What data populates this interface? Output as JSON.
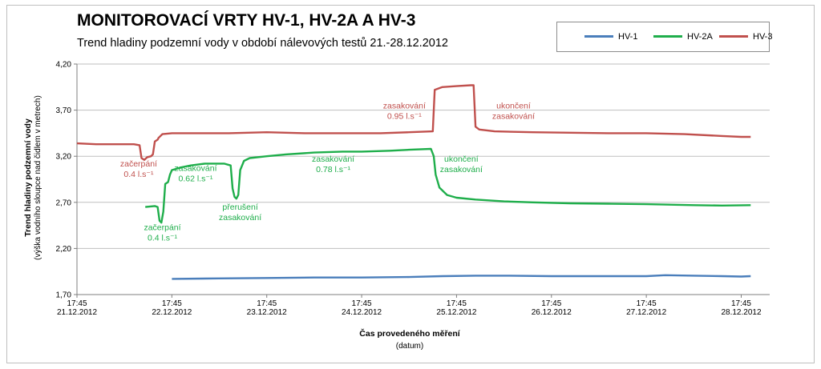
{
  "chart_data": {
    "type": "line",
    "title": "MONITOROVACÍ VRTY HV-1, HV-2A A HV-3",
    "subtitle": "Trend hladiny podzemní vody v období nálevových testů 21.-28.12.2012",
    "ylabel": "Trend hladiny podzemní vody",
    "ylabel_sub": "(výška vodního sloupce nad čidlem v metrech)",
    "xlabel": "Čas provedeného měření",
    "xlabel_sub": "(datum)",
    "ylim": [
      1.7,
      4.2
    ],
    "yticks": [
      "4,20",
      "3,70",
      "3,20",
      "2,70",
      "2,20",
      "1,70"
    ],
    "xlim": [
      0,
      7.3
    ],
    "xticks": [
      {
        "time": "17:45",
        "date": "21.12.2012"
      },
      {
        "time": "17:45",
        "date": "22.12.2012"
      },
      {
        "time": "17:45",
        "date": "23.12.2012"
      },
      {
        "time": "17:45",
        "date": "24.12.2012"
      },
      {
        "time": "17:45",
        "date": "25.12.2012"
      },
      {
        "time": "17:45",
        "date": "26.12.2012"
      },
      {
        "time": "17:45",
        "date": "27.12.2012"
      },
      {
        "time": "17:45",
        "date": "28.12.2012"
      }
    ],
    "grid": true,
    "legend_position": "top-right",
    "series": [
      {
        "name": "HV-1",
        "color": "#4a7ebb",
        "points": [
          [
            1.0,
            1.87
          ],
          [
            1.5,
            1.875
          ],
          [
            2.0,
            1.88
          ],
          [
            2.5,
            1.885
          ],
          [
            3.0,
            1.885
          ],
          [
            3.5,
            1.89
          ],
          [
            3.85,
            1.9
          ],
          [
            4.2,
            1.905
          ],
          [
            4.5,
            1.905
          ],
          [
            5.0,
            1.9
          ],
          [
            5.5,
            1.9
          ],
          [
            6.0,
            1.9
          ],
          [
            6.2,
            1.91
          ],
          [
            6.5,
            1.905
          ],
          [
            6.8,
            1.9
          ],
          [
            7.0,
            1.895
          ],
          [
            7.1,
            1.9
          ]
        ]
      },
      {
        "name": "HV-2A",
        "color": "#1fae4b",
        "points": [
          [
            0.72,
            2.65
          ],
          [
            0.82,
            2.66
          ],
          [
            0.85,
            2.65
          ],
          [
            0.87,
            2.5
          ],
          [
            0.89,
            2.48
          ],
          [
            0.91,
            2.6
          ],
          [
            0.93,
            2.9
          ],
          [
            0.96,
            2.92
          ],
          [
            0.98,
            3.0
          ],
          [
            1.0,
            3.05
          ],
          [
            1.1,
            3.08
          ],
          [
            1.2,
            3.1
          ],
          [
            1.35,
            3.12
          ],
          [
            1.55,
            3.12
          ],
          [
            1.62,
            3.1
          ],
          [
            1.64,
            2.85
          ],
          [
            1.66,
            2.76
          ],
          [
            1.68,
            2.74
          ],
          [
            1.7,
            2.78
          ],
          [
            1.72,
            3.05
          ],
          [
            1.76,
            3.15
          ],
          [
            1.82,
            3.18
          ],
          [
            2.0,
            3.2
          ],
          [
            2.2,
            3.22
          ],
          [
            2.5,
            3.24
          ],
          [
            2.8,
            3.25
          ],
          [
            3.0,
            3.25
          ],
          [
            3.3,
            3.26
          ],
          [
            3.5,
            3.27
          ],
          [
            3.73,
            3.28
          ],
          [
            3.76,
            3.2
          ],
          [
            3.78,
            3.0
          ],
          [
            3.82,
            2.86
          ],
          [
            3.9,
            2.78
          ],
          [
            4.0,
            2.75
          ],
          [
            4.2,
            2.73
          ],
          [
            4.5,
            2.71
          ],
          [
            4.8,
            2.7
          ],
          [
            5.2,
            2.69
          ],
          [
            5.6,
            2.685
          ],
          [
            6.0,
            2.68
          ],
          [
            6.5,
            2.67
          ],
          [
            6.8,
            2.665
          ],
          [
            7.1,
            2.67
          ]
        ]
      },
      {
        "name": "HV-3",
        "color": "#c0504d",
        "points": [
          [
            0.0,
            3.34
          ],
          [
            0.2,
            3.33
          ],
          [
            0.4,
            3.33
          ],
          [
            0.6,
            3.33
          ],
          [
            0.66,
            3.32
          ],
          [
            0.68,
            3.18
          ],
          [
            0.71,
            3.16
          ],
          [
            0.74,
            3.19
          ],
          [
            0.78,
            3.2
          ],
          [
            0.8,
            3.22
          ],
          [
            0.82,
            3.36
          ],
          [
            0.85,
            3.38
          ],
          [
            0.86,
            3.4
          ],
          [
            0.9,
            3.44
          ],
          [
            1.0,
            3.45
          ],
          [
            1.3,
            3.45
          ],
          [
            1.6,
            3.45
          ],
          [
            2.0,
            3.46
          ],
          [
            2.4,
            3.45
          ],
          [
            2.8,
            3.45
          ],
          [
            3.2,
            3.45
          ],
          [
            3.5,
            3.46
          ],
          [
            3.75,
            3.47
          ],
          [
            3.77,
            3.92
          ],
          [
            3.85,
            3.95
          ],
          [
            4.0,
            3.96
          ],
          [
            4.15,
            3.97
          ],
          [
            4.18,
            3.97
          ],
          [
            4.2,
            3.52
          ],
          [
            4.24,
            3.49
          ],
          [
            4.4,
            3.47
          ],
          [
            4.8,
            3.46
          ],
          [
            5.2,
            3.455
          ],
          [
            5.6,
            3.45
          ],
          [
            6.0,
            3.45
          ],
          [
            6.4,
            3.44
          ],
          [
            6.8,
            3.42
          ],
          [
            7.0,
            3.41
          ],
          [
            7.1,
            3.41
          ]
        ]
      }
    ],
    "annotations": [
      {
        "series": "HV-3",
        "lines": [
          "začerpání",
          "0.4 l.s⁻¹"
        ],
        "x": 0.65,
        "y": 3.09
      },
      {
        "series": "HV-3",
        "lines": [
          "zasakování",
          "0.95 l.s⁻¹"
        ],
        "x": 3.45,
        "y": 3.72
      },
      {
        "series": "HV-3",
        "lines": [
          "ukončení",
          "zasakování"
        ],
        "x": 4.6,
        "y": 3.72
      },
      {
        "series": "HV-2A",
        "lines": [
          "zasakování",
          "0.62 l.s⁻¹"
        ],
        "x": 1.25,
        "y": 3.04
      },
      {
        "series": "HV-2A",
        "lines": [
          "zasakování",
          "0.78 l.s⁻¹"
        ],
        "x": 2.7,
        "y": 3.14
      },
      {
        "series": "HV-2A",
        "lines": [
          "ukončení",
          "zasakování"
        ],
        "x": 4.05,
        "y": 3.14
      },
      {
        "series": "HV-2A",
        "lines": [
          "přerušení",
          "zasakování"
        ],
        "x": 1.72,
        "y": 2.62
      },
      {
        "series": "HV-2A",
        "lines": [
          "začerpání",
          "0.4 l.s⁻¹"
        ],
        "x": 0.9,
        "y": 2.4
      }
    ]
  }
}
